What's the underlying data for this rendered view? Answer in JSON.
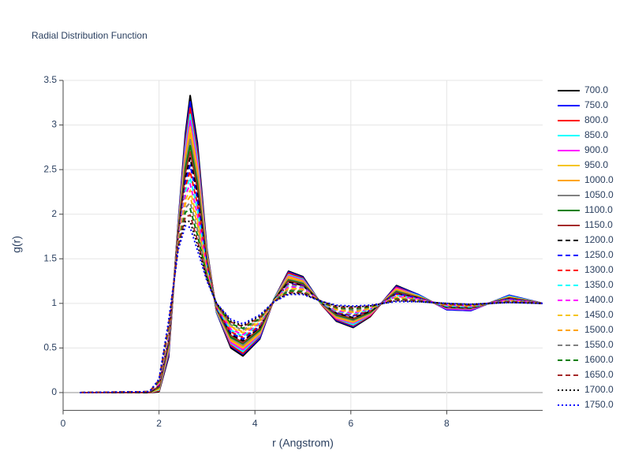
{
  "chart_data": {
    "type": "line",
    "title": "Radial Distribution Function",
    "x_label": "r (Angstrom)",
    "y_label": "g(r)",
    "x": [
      0.35,
      1.8,
      2.0,
      2.2,
      2.4,
      2.55,
      2.65,
      2.8,
      3.0,
      3.2,
      3.5,
      3.75,
      4.1,
      4.4,
      4.7,
      5.0,
      5.4,
      5.7,
      6.05,
      6.4,
      6.95,
      7.4,
      8.0,
      8.5,
      9.3,
      10.0
    ],
    "xlim": [
      0,
      10
    ],
    "xticks": [
      0,
      2,
      4,
      6,
      8
    ],
    "ylim": [
      -0.2,
      3.5
    ],
    "yticks": [
      0,
      0.5,
      1,
      1.5,
      2,
      2.5,
      3,
      3.5
    ],
    "grid": true,
    "legend": "right",
    "series": [
      {
        "name": "700.0",
        "color": "black",
        "dash": "solid",
        "values": [
          0,
          0,
          0.01,
          0.4,
          1.9,
          2.9,
          3.33,
          2.8,
          1.6,
          0.9,
          0.5,
          0.41,
          0.6,
          1.05,
          1.36,
          1.3,
          0.98,
          0.8,
          0.73,
          0.85,
          1.2,
          1.1,
          0.93,
          0.92,
          1.09,
          1
        ]
      },
      {
        "name": "750.0",
        "color": "blue",
        "dash": "solid",
        "values": [
          0,
          0,
          0.02,
          0.42,
          1.89,
          2.85,
          3.26,
          2.74,
          1.58,
          0.9,
          0.52,
          0.43,
          0.61,
          1.05,
          1.35,
          1.29,
          0.98,
          0.81,
          0.74,
          0.86,
          1.19,
          1.1,
          0.93,
          0.92,
          1.09,
          1
        ]
      },
      {
        "name": "800.0",
        "color": "red",
        "dash": "solid",
        "values": [
          0,
          0,
          0.02,
          0.44,
          1.87,
          2.8,
          3.19,
          2.69,
          1.57,
          0.91,
          0.53,
          0.44,
          0.63,
          1.05,
          1.34,
          1.28,
          0.98,
          0.82,
          0.75,
          0.86,
          1.18,
          1.09,
          0.94,
          0.93,
          1.08,
          1
        ]
      },
      {
        "name": "850.0",
        "color": "cyan",
        "dash": "solid",
        "values": [
          0,
          0,
          0.03,
          0.46,
          1.86,
          2.75,
          3.12,
          2.63,
          1.55,
          0.91,
          0.55,
          0.46,
          0.64,
          1.05,
          1.32,
          1.27,
          0.99,
          0.83,
          0.76,
          0.87,
          1.17,
          1.09,
          0.94,
          0.93,
          1.08,
          1
        ]
      },
      {
        "name": "900.0",
        "color": "magenta",
        "dash": "solid",
        "values": [
          0,
          0,
          0.04,
          0.48,
          1.84,
          2.7,
          3.05,
          2.57,
          1.53,
          0.92,
          0.56,
          0.48,
          0.65,
          1.04,
          1.31,
          1.26,
          0.99,
          0.83,
          0.78,
          0.87,
          1.17,
          1.08,
          0.94,
          0.93,
          1.07,
          1
        ]
      },
      {
        "name": "950.0",
        "color": "#f5c518",
        "dash": "solid",
        "values": [
          0,
          0,
          0.04,
          0.5,
          1.83,
          2.65,
          2.98,
          2.51,
          1.52,
          0.92,
          0.58,
          0.5,
          0.66,
          1.04,
          1.3,
          1.25,
          0.99,
          0.84,
          0.79,
          0.88,
          1.16,
          1.08,
          0.95,
          0.94,
          1.07,
          1
        ]
      },
      {
        "name": "1000.0",
        "color": "orange",
        "dash": "solid",
        "values": [
          0,
          0,
          0.05,
          0.51,
          1.81,
          2.61,
          2.91,
          2.46,
          1.5,
          0.93,
          0.59,
          0.51,
          0.68,
          1.04,
          1.29,
          1.24,
          0.99,
          0.85,
          0.8,
          0.89,
          1.15,
          1.08,
          0.95,
          0.94,
          1.07,
          1
        ]
      },
      {
        "name": "1050.0",
        "color": "gray",
        "dash": "solid",
        "values": [
          0,
          0,
          0.06,
          0.53,
          1.8,
          2.56,
          2.84,
          2.4,
          1.48,
          0.93,
          0.61,
          0.53,
          0.69,
          1.04,
          1.27,
          1.23,
          0.99,
          0.86,
          0.81,
          0.89,
          1.14,
          1.07,
          0.95,
          0.94,
          1.06,
          1
        ]
      },
      {
        "name": "1100.0",
        "color": "green",
        "dash": "solid",
        "values": [
          0,
          0,
          0.06,
          0.55,
          1.79,
          2.51,
          2.77,
          2.34,
          1.47,
          0.94,
          0.62,
          0.55,
          0.7,
          1.04,
          1.26,
          1.22,
          1,
          0.87,
          0.82,
          0.9,
          1.13,
          1.07,
          0.96,
          0.95,
          1.06,
          1
        ]
      },
      {
        "name": "1150.0",
        "color": "brown",
        "dash": "solid",
        "values": [
          0,
          0,
          0.07,
          0.57,
          1.77,
          2.46,
          2.7,
          2.29,
          1.45,
          0.94,
          0.64,
          0.56,
          0.72,
          1.04,
          1.25,
          1.21,
          1,
          0.88,
          0.83,
          0.91,
          1.12,
          1.07,
          0.96,
          0.95,
          1.06,
          1
        ]
      },
      {
        "name": "1200.0",
        "color": "black",
        "dash": "dash",
        "values": [
          0,
          0,
          0.08,
          0.59,
          1.76,
          2.41,
          2.63,
          2.23,
          1.43,
          0.95,
          0.65,
          0.58,
          0.73,
          1.04,
          1.24,
          1.2,
          1,
          0.89,
          0.84,
          0.91,
          1.11,
          1.06,
          0.96,
          0.95,
          1.05,
          1
        ]
      },
      {
        "name": "1250.0",
        "color": "blue",
        "dash": "dash",
        "values": [
          0,
          0.01,
          0.08,
          0.61,
          1.74,
          2.36,
          2.55,
          2.17,
          1.42,
          0.95,
          0.67,
          0.6,
          0.74,
          1.03,
          1.22,
          1.2,
          1,
          0.89,
          0.86,
          0.92,
          1.11,
          1.06,
          0.97,
          0.96,
          1.05,
          1
        ]
      },
      {
        "name": "1300.0",
        "color": "red",
        "dash": "dash",
        "values": [
          0,
          0.01,
          0.09,
          0.63,
          1.73,
          2.31,
          2.48,
          2.11,
          1.4,
          0.96,
          0.68,
          0.62,
          0.75,
          1.03,
          1.21,
          1.19,
          1,
          0.9,
          0.87,
          0.92,
          1.1,
          1.05,
          0.97,
          0.96,
          1.04,
          1
        ]
      },
      {
        "name": "1350.0",
        "color": "cyan",
        "dash": "dash",
        "values": [
          0,
          0.01,
          0.1,
          0.65,
          1.71,
          2.26,
          2.41,
          2.06,
          1.38,
          0.96,
          0.7,
          0.63,
          0.77,
          1.03,
          1.2,
          1.18,
          1,
          0.91,
          0.88,
          0.93,
          1.09,
          1.05,
          0.97,
          0.96,
          1.04,
          1
        ]
      },
      {
        "name": "1400.0",
        "color": "magenta",
        "dash": "dash",
        "values": [
          0,
          0.01,
          0.1,
          0.67,
          1.7,
          2.21,
          2.34,
          2,
          1.37,
          0.97,
          0.71,
          0.65,
          0.78,
          1.03,
          1.19,
          1.17,
          1.01,
          0.92,
          0.89,
          0.94,
          1.08,
          1.05,
          0.98,
          0.97,
          1.04,
          1
        ]
      },
      {
        "name": "1450.0",
        "color": "#f5c518",
        "dash": "dash",
        "values": [
          0,
          0.01,
          0.11,
          0.69,
          1.69,
          2.16,
          2.27,
          1.94,
          1.35,
          0.97,
          0.73,
          0.67,
          0.79,
          1.03,
          1.17,
          1.16,
          1.01,
          0.93,
          0.9,
          0.94,
          1.07,
          1.04,
          0.98,
          0.97,
          1.03,
          1
        ]
      },
      {
        "name": "1500.0",
        "color": "orange",
        "dash": "dash",
        "values": [
          0,
          0.01,
          0.12,
          0.7,
          1.67,
          2.12,
          2.2,
          1.89,
          1.33,
          0.98,
          0.74,
          0.68,
          0.81,
          1.03,
          1.16,
          1.15,
          1.01,
          0.94,
          0.91,
          0.95,
          1.06,
          1.04,
          0.98,
          0.97,
          1.03,
          1
        ]
      },
      {
        "name": "1550.0",
        "color": "gray",
        "dash": "dash",
        "values": [
          0,
          0.01,
          0.12,
          0.72,
          1.66,
          2.07,
          2.13,
          1.83,
          1.32,
          0.98,
          0.76,
          0.7,
          0.82,
          1.03,
          1.15,
          1.14,
          1.01,
          0.95,
          0.92,
          0.96,
          1.05,
          1.04,
          0.99,
          0.98,
          1.03,
          1
        ]
      },
      {
        "name": "1600.0",
        "color": "green",
        "dash": "dash",
        "values": [
          0,
          0.01,
          0.13,
          0.74,
          1.64,
          2.02,
          2.06,
          1.77,
          1.3,
          0.99,
          0.77,
          0.72,
          0.83,
          1.02,
          1.14,
          1.13,
          1.01,
          0.95,
          0.94,
          0.96,
          1.05,
          1.03,
          0.99,
          0.98,
          1.02,
          1
        ]
      },
      {
        "name": "1650.0",
        "color": "brown",
        "dash": "dash",
        "values": [
          0,
          0.01,
          0.14,
          0.76,
          1.63,
          1.97,
          1.99,
          1.71,
          1.28,
          0.99,
          0.79,
          0.74,
          0.84,
          1.02,
          1.12,
          1.12,
          1.02,
          0.96,
          0.95,
          0.97,
          1.04,
          1.03,
          0.99,
          0.98,
          1.02,
          1
        ]
      },
      {
        "name": "1700.0",
        "color": "black",
        "dash": "dot",
        "values": [
          0,
          0.01,
          0.14,
          0.78,
          1.61,
          1.92,
          1.92,
          1.66,
          1.27,
          1,
          0.8,
          0.75,
          0.86,
          1.02,
          1.11,
          1.11,
          1.02,
          0.97,
          0.96,
          0.97,
          1.03,
          1.02,
          1,
          0.99,
          1.01,
          1
        ]
      },
      {
        "name": "1750.0",
        "color": "blue",
        "dash": "dot",
        "values": [
          0,
          0.01,
          0.15,
          0.8,
          1.6,
          1.87,
          1.85,
          1.6,
          1.25,
          1,
          0.82,
          0.77,
          0.87,
          1.02,
          1.1,
          1.1,
          1.02,
          0.98,
          0.97,
          0.98,
          1.02,
          1.02,
          1,
          0.99,
          1.01,
          1
        ]
      }
    ]
  }
}
